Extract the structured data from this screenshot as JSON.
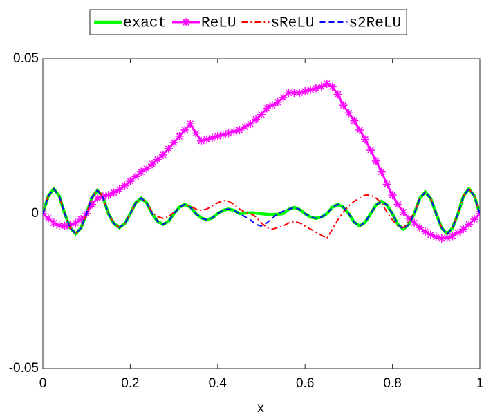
{
  "chart_data": {
    "type": "line",
    "x": [
      0,
      0.0125,
      0.025,
      0.0375,
      0.05,
      0.0625,
      0.075,
      0.0875,
      0.1,
      0.1125,
      0.125,
      0.1375,
      0.15,
      0.1625,
      0.175,
      0.1875,
      0.2,
      0.2125,
      0.225,
      0.2375,
      0.25,
      0.2625,
      0.275,
      0.2875,
      0.3,
      0.3125,
      0.325,
      0.3375,
      0.35,
      0.3625,
      0.375,
      0.3875,
      0.4,
      0.4125,
      0.425,
      0.4375,
      0.45,
      0.4625,
      0.475,
      0.4875,
      0.5,
      0.5125,
      0.525,
      0.5375,
      0.55,
      0.5625,
      0.575,
      0.5875,
      0.6,
      0.6125,
      0.625,
      0.6375,
      0.65,
      0.6625,
      0.675,
      0.6875,
      0.7,
      0.7125,
      0.725,
      0.7375,
      0.75,
      0.7625,
      0.775,
      0.7875,
      0.8,
      0.8125,
      0.825,
      0.8375,
      0.85,
      0.8625,
      0.875,
      0.8875,
      0.9,
      0.9125,
      0.925,
      0.9375,
      0.95,
      0.9625,
      0.975,
      0.9875,
      1
    ],
    "series": [
      {
        "name": "exact",
        "color": "#00ff00",
        "line_style": "solid",
        "line_width": 4.5,
        "values": [
          0,
          0.0057,
          0.008,
          0.0057,
          0,
          -0.0046,
          -0.0065,
          -0.0046,
          0,
          0.0053,
          0.0075,
          0.0053,
          0,
          -0.0032,
          -0.0045,
          -0.0032,
          0,
          0.0035,
          0.005,
          0.0035,
          0,
          -0.0025,
          -0.0035,
          -0.0025,
          0,
          0.0021,
          0.003,
          0.0021,
          0,
          -0.0014,
          -0.002,
          -0.0014,
          0,
          0.0011,
          0.0015,
          0.0011,
          0,
          0.0002,
          0.0003,
          0.0002,
          0,
          -0.0002,
          -0.0003,
          -0.0002,
          0,
          0.0014,
          0.002,
          0.0014,
          0,
          -0.0011,
          -0.0015,
          -0.0011,
          0,
          0.0021,
          0.003,
          0.0021,
          0,
          -0.0028,
          -0.004,
          -0.0028,
          0,
          0.0028,
          0.004,
          0.0028,
          0,
          -0.0035,
          -0.005,
          -0.0035,
          0,
          0.0049,
          0.007,
          0.0049,
          0,
          -0.0046,
          -0.0065,
          -0.0046,
          0,
          0.0057,
          0.008,
          0.0057,
          0
        ]
      },
      {
        "name": "ReLU",
        "color": "#ff00ff",
        "line_style": "solid",
        "line_width": 3,
        "marker": "*",
        "values": [
          0,
          -0.0015,
          -0.003,
          -0.0038,
          -0.004,
          -0.0038,
          -0.003,
          -0.0018,
          0,
          0.003,
          0.005,
          0.0055,
          0.006,
          0.0068,
          0.0078,
          0.009,
          0.0105,
          0.012,
          0.0135,
          0.0145,
          0.016,
          0.0175,
          0.019,
          0.021,
          0.023,
          0.025,
          0.027,
          0.029,
          0.026,
          0.0235,
          0.024,
          0.0245,
          0.025,
          0.0255,
          0.026,
          0.0265,
          0.027,
          0.028,
          0.029,
          0.0305,
          0.032,
          0.034,
          0.035,
          0.036,
          0.0375,
          0.039,
          0.039,
          0.039,
          0.0395,
          0.04,
          0.0405,
          0.041,
          0.042,
          0.041,
          0.0385,
          0.035,
          0.0325,
          0.03,
          0.027,
          0.024,
          0.0205,
          0.017,
          0.0135,
          0.0095,
          0.006,
          0.003,
          0.0005,
          -0.0015,
          -0.003,
          -0.0045,
          -0.0058,
          -0.0068,
          -0.0075,
          -0.008,
          -0.0078,
          -0.0072,
          -0.0062,
          -0.005,
          -0.0035,
          -0.0018,
          0
        ]
      },
      {
        "name": "sReLU",
        "color": "#ff0000",
        "line_style": "dashdot",
        "line_width": 2,
        "values": [
          0,
          0.0057,
          0.008,
          0.0057,
          0,
          -0.0046,
          -0.0065,
          -0.0046,
          0,
          0.0053,
          0.008,
          0.0053,
          0,
          -0.0032,
          -0.0045,
          -0.0032,
          0,
          0.0035,
          0.005,
          0.0035,
          0.0005,
          -0.001,
          -0.0015,
          -0.001,
          0.0005,
          0.002,
          0.003,
          0.0025,
          0.0015,
          0.001,
          0.0015,
          0.0025,
          0.0035,
          0.0042,
          0.004,
          0.003,
          0.0015,
          0.0005,
          0,
          -0.001,
          -0.003,
          -0.0045,
          -0.005,
          -0.0045,
          -0.004,
          -0.003,
          -0.0025,
          -0.003,
          -0.004,
          -0.005,
          -0.006,
          -0.007,
          -0.008,
          -0.005,
          -0.002,
          0.0005,
          0.0025,
          0.004,
          0.005,
          0.006,
          0.006,
          0.005,
          0.0035,
          0.0005,
          -0.002,
          -0.004,
          -0.0045,
          -0.0025,
          0,
          0.0049,
          0.007,
          0.0049,
          0,
          -0.0046,
          -0.0065,
          -0.0046,
          0,
          0.0057,
          0.008,
          0.0057,
          0
        ]
      },
      {
        "name": "s2ReLU",
        "color": "#0000ff",
        "line_style": "dashed",
        "line_width": 2,
        "values": [
          0,
          0.0057,
          0.008,
          0.0057,
          0,
          -0.0046,
          -0.0065,
          -0.0046,
          0,
          0.0053,
          0.0075,
          0.0053,
          0,
          -0.0032,
          -0.0045,
          -0.0032,
          0,
          0.0035,
          0.005,
          0.0035,
          0,
          -0.0025,
          -0.0035,
          -0.0025,
          0,
          0.0021,
          0.003,
          0.0021,
          0,
          -0.0014,
          -0.002,
          -0.0014,
          0,
          0.0011,
          0.0015,
          0.0011,
          0,
          -0.001,
          -0.002,
          -0.0035,
          -0.004,
          -0.003,
          -0.0015,
          0,
          0.0008,
          0.0014,
          0.002,
          0.0014,
          0,
          -0.0011,
          -0.0015,
          -0.0011,
          0,
          0.0021,
          0.003,
          0.0021,
          0,
          -0.0028,
          -0.004,
          -0.0028,
          0,
          0.0028,
          0.004,
          0.0028,
          0,
          -0.0035,
          -0.005,
          -0.0035,
          0,
          0.0049,
          0.007,
          0.0049,
          0,
          -0.0046,
          -0.0065,
          -0.0046,
          0,
          0.0057,
          0.008,
          0.0057,
          0
        ]
      }
    ],
    "xlabel": "x",
    "xlim": [
      0,
      1
    ],
    "xticks": [
      0,
      0.2,
      0.4,
      0.6,
      0.8,
      1
    ],
    "ylim": [
      -0.05,
      0.05
    ],
    "yticks": [
      -0.05,
      0,
      0.05
    ],
    "legend": "top"
  }
}
